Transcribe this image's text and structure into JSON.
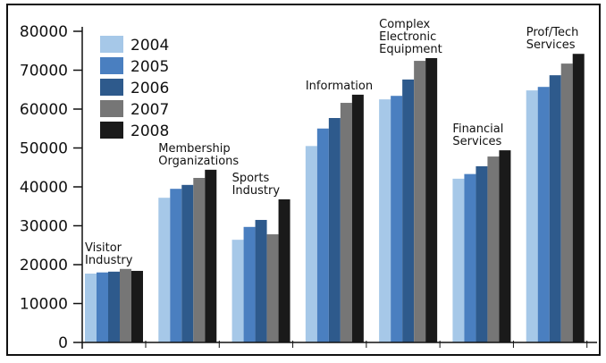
{
  "chart_data": {
    "type": "bar",
    "categories": [
      "Visitor Industry",
      "Membership Organizations",
      "Sports Industry",
      "Information",
      "Complex Electronic Equipment",
      "Financial Services",
      "Prof/Tech Services"
    ],
    "series": [
      {
        "name": "2004",
        "color": "#a6c8e8",
        "values": [
          17700,
          37200,
          26400,
          50500,
          62500,
          42100,
          64800
        ]
      },
      {
        "name": "2005",
        "color": "#4a7fc0",
        "values": [
          18000,
          39500,
          29700,
          55000,
          63400,
          43300,
          65700
        ]
      },
      {
        "name": "2006",
        "color": "#2e5a8c",
        "values": [
          18200,
          40500,
          31500,
          57700,
          67600,
          45300,
          68700
        ]
      },
      {
        "name": "2007",
        "color": "#767676",
        "values": [
          18900,
          42300,
          27800,
          61600,
          72400,
          47800,
          71700
        ]
      },
      {
        "name": "2008",
        "color": "#1a1a1a",
        "values": [
          18400,
          44400,
          36800,
          63700,
          73100,
          49400,
          74200
        ]
      }
    ],
    "ylim": [
      0,
      80000
    ],
    "yticks": [
      0,
      10000,
      20000,
      30000,
      40000,
      50000,
      60000,
      70000,
      80000
    ]
  }
}
